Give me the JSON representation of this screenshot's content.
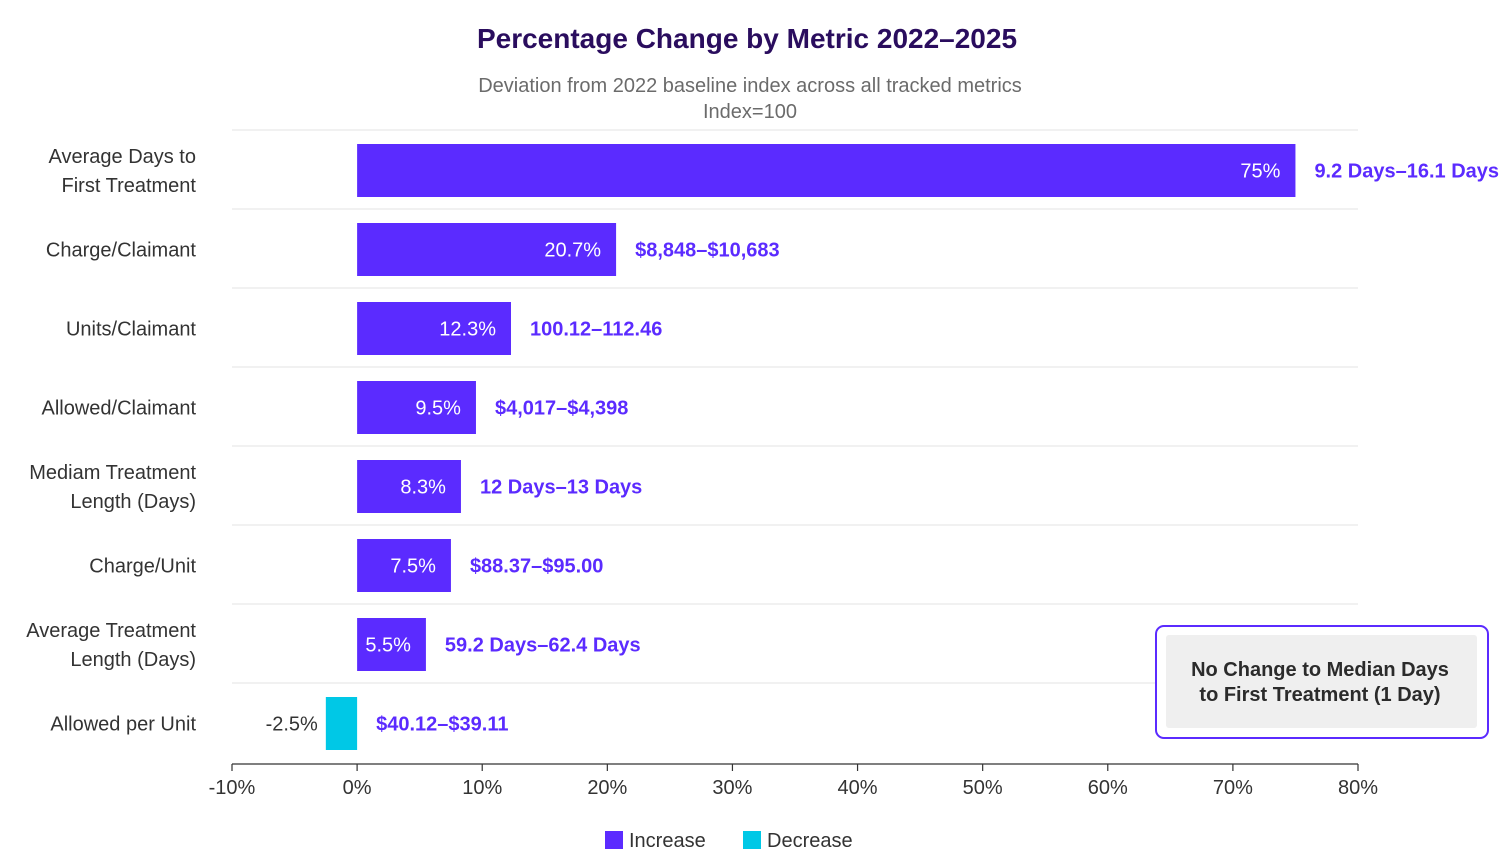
{
  "chart_data": {
    "type": "bar",
    "orientation": "horizontal",
    "title": "Percentage Change by Metric 2022–2025",
    "subtitle_lines": [
      "Deviation from 2022 baseline index across all tracked metrics",
      "Index=100"
    ],
    "categories": [
      "Average Days to First Treatment",
      "Charge/Claimant",
      "Units/Claimant",
      "Allowed/Claimant",
      "Mediam Treatment Length (Days)",
      "Charge/Unit",
      "Average Treatment Length (Days)",
      "Allowed per Unit"
    ],
    "category_lines": [
      [
        "Average Days to",
        "First Treatment"
      ],
      [
        "Charge/Claimant"
      ],
      [
        "Units/Claimant"
      ],
      [
        "Allowed/Claimant"
      ],
      [
        "Mediam Treatment",
        "Length (Days)"
      ],
      [
        "Charge/Unit"
      ],
      [
        "Average Treatment",
        "Length (Days)"
      ],
      [
        "Allowed per Unit"
      ]
    ],
    "values": [
      75,
      20.7,
      12.3,
      9.5,
      8.3,
      7.5,
      5.5,
      -2.5
    ],
    "value_labels": [
      "75%",
      "20.7%",
      "12.3%",
      "9.5%",
      "8.3%",
      "7.5%",
      "5.5%",
      "-2.5%"
    ],
    "range_labels": [
      "9.2 Days–16.1 Days",
      "$8,848–$10,683",
      "100.12–112.46",
      "$4,017–$4,398",
      "12 Days–13 Days",
      "$88.37–$95.00",
      "59.2 Days–62.4 Days",
      "$40.12–$39.11"
    ],
    "xlim": [
      -10,
      80
    ],
    "xticks": [
      -10,
      0,
      10,
      20,
      30,
      40,
      50,
      60,
      70,
      80
    ],
    "xtick_labels": [
      "-10%",
      "0%",
      "10%",
      "20%",
      "30%",
      "40%",
      "50%",
      "60%",
      "70%",
      "80%"
    ],
    "xlabel": "",
    "ylabel": "",
    "grid": "horizontal separators",
    "legend": {
      "placement": "bottom-center",
      "entries": [
        {
          "label": "Increase",
          "color": "#5b2bff"
        },
        {
          "label": "Decrease",
          "color": "#00c8e6"
        }
      ]
    },
    "annotation": {
      "lines": [
        "No Change to Median Days",
        "to First Treatment (1 Day)"
      ],
      "placement": "bottom-right"
    },
    "colors": {
      "increase": "#5b2bff",
      "decrease": "#00c8e6",
      "range_text": "#5b2bff",
      "title": "#2a0d5e",
      "annotation_border": "#5b2bff",
      "annotation_fill": "#efefef"
    }
  }
}
